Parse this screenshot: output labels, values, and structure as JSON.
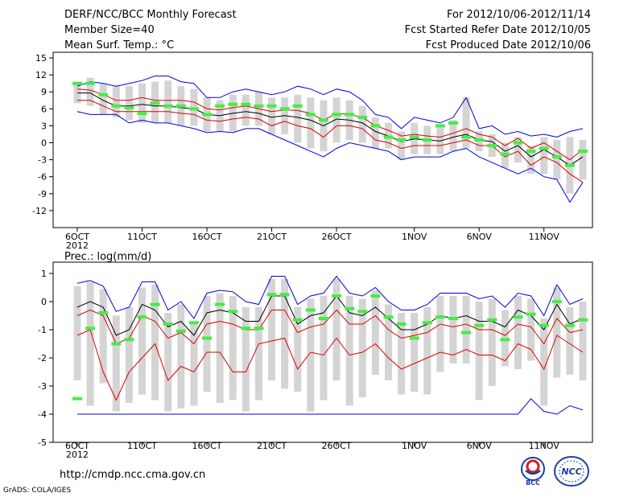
{
  "header": {
    "title": "DERF/NCC/BCC Monthly Forecast",
    "member_size": "Member Size=40",
    "variable": "Mean Surf. Temp.: °C",
    "forecast_period": "For 2012/10/06-2012/11/14",
    "started_refer": "Fcst Started Refer Date 2012/10/05",
    "produced": "Fcst Produced Date 2012/10/06"
  },
  "footer": {
    "url": "http://cmdp.ncc.cma.gov.cn",
    "credit": "GrADS: COLA/IGES",
    "logo_bcc": "BCC",
    "logo_ncc": "NCC"
  },
  "colors": {
    "envelope": "#0000dd",
    "spread": "#dd0000",
    "mean": "#000000",
    "box": "#d4d4d4",
    "median": "#44ee44"
  },
  "chart_data": [
    {
      "type": "line",
      "title": "Mean Surf. Temp.: °C",
      "xlabel": "",
      "ylabel": "",
      "n_days": 40,
      "xticks": [
        {
          "day": 0,
          "label": "6OCT"
        },
        {
          "day": 5,
          "label": "11OCT"
        },
        {
          "day": 10,
          "label": "16OCT"
        },
        {
          "day": 15,
          "label": "21OCT"
        },
        {
          "day": 20,
          "label": "26OCT"
        },
        {
          "day": 26,
          "label": "1NOV"
        },
        {
          "day": 31,
          "label": "6NOV"
        },
        {
          "day": 36,
          "label": "11NOV"
        }
      ],
      "year_label": "2012",
      "ylim": [
        -15,
        16
      ],
      "yticks": [
        15,
        12,
        9,
        6,
        3,
        0,
        -3,
        -6,
        -9,
        -12
      ],
      "series": [
        {
          "name": "max",
          "color": "#0000dd",
          "values": [
            10,
            10.8,
            10.5,
            10,
            10.5,
            11,
            11.8,
            11.8,
            10.8,
            10.5,
            8,
            8,
            9,
            9.5,
            9,
            8.5,
            9,
            10,
            9.5,
            8.5,
            9.5,
            9,
            7.5,
            5,
            4.5,
            2.5,
            4.5,
            4,
            3.5,
            4.5,
            8,
            2.5,
            3,
            1.5,
            2,
            1.2,
            1.5,
            1,
            2,
            2.5
          ]
        },
        {
          "name": "upper",
          "color": "#dd0000",
          "values": [
            9.5,
            9.3,
            8.5,
            7.5,
            7.5,
            8,
            7.5,
            7.5,
            7.5,
            7.2,
            6,
            5.8,
            6.2,
            6.5,
            6,
            5.5,
            5.8,
            5.7,
            5.2,
            4,
            5.2,
            5,
            4.5,
            3,
            2.2,
            1.2,
            1.5,
            1.2,
            1,
            1.7,
            2.5,
            1.5,
            1,
            -0.5,
            0.8,
            -1,
            0,
            -1.5,
            -3,
            -1.2
          ]
        },
        {
          "name": "mean",
          "color": "#000000",
          "values": [
            8.8,
            8.8,
            7.5,
            6.5,
            6.5,
            6.8,
            6.5,
            6.5,
            6.2,
            6,
            5,
            4.8,
            5.2,
            5.5,
            5.2,
            4.5,
            4.8,
            4.5,
            4,
            3,
            4.2,
            4,
            3.5,
            2,
            1.2,
            0.2,
            0.7,
            0.5,
            0.3,
            1,
            1.5,
            0.5,
            0.2,
            -1.5,
            -0.5,
            -2.5,
            -1.2,
            -2.5,
            -4,
            -2.5
          ]
        },
        {
          "name": "lower",
          "color": "#dd0000",
          "values": [
            7.5,
            7.5,
            6.5,
            5.5,
            5.5,
            5.5,
            5.5,
            5.5,
            5.2,
            5,
            4,
            3.8,
            4.2,
            4.5,
            4.2,
            3,
            3.8,
            3,
            2.5,
            1,
            3,
            3,
            2.5,
            0.5,
            0,
            -1,
            -0.5,
            -0.5,
            -0.5,
            0,
            0.5,
            -0.5,
            -0.5,
            -2.5,
            -1.5,
            -4,
            -2.5,
            -3.5,
            -5.5,
            -7
          ]
        },
        {
          "name": "min",
          "color": "#0000dd",
          "values": [
            5.5,
            5,
            5,
            5,
            3.5,
            4,
            3.5,
            3.5,
            3,
            2.5,
            1.8,
            2,
            1.8,
            2.5,
            2.5,
            1.5,
            0.5,
            -0.5,
            -1.5,
            -2.5,
            -1,
            0,
            -0.5,
            -1,
            -1.5,
            -3,
            -2.5,
            -2.5,
            -2.5,
            -1.5,
            -1,
            -2.5,
            -3.5,
            -4.5,
            -5.5,
            -4.5,
            -6,
            -6.5,
            -10.5,
            -7
          ]
        }
      ],
      "boxes": {
        "top": [
          10.5,
          11.5,
          10.5,
          10,
          10,
          10.5,
          10.8,
          11,
          10,
          9.5,
          8,
          7.5,
          8.5,
          8.5,
          9,
          8,
          8,
          8.5,
          8,
          7.5,
          8,
          7.5,
          6.5,
          4.5,
          3.5,
          2,
          3.5,
          3,
          3,
          4,
          8,
          2,
          1.5,
          0,
          1,
          -0.5,
          1,
          0.5,
          1,
          0.5
        ],
        "bottom": [
          7,
          6.5,
          5,
          4.5,
          4,
          3.5,
          3.5,
          3.5,
          3,
          3,
          2,
          2,
          2,
          3,
          3,
          1.5,
          1.5,
          0,
          -1,
          -1.5,
          0,
          0.5,
          0,
          -1,
          -1,
          -3,
          -2,
          -2,
          -2,
          -1.5,
          -1,
          -1.5,
          -2.5,
          -4.5,
          -3.5,
          -5.5,
          -5.5,
          -6.5,
          -9,
          -6.5
        ]
      },
      "median": [
        10.5,
        10.5,
        8.5,
        6.5,
        6.2,
        5.2,
        7,
        6.5,
        6.5,
        6,
        5,
        6.5,
        6.8,
        6.8,
        6.5,
        6.5,
        6,
        6.5,
        5,
        4,
        5,
        5,
        4.5,
        3,
        1,
        0.5,
        1,
        0.5,
        3,
        3.5,
        1,
        0.5,
        -0.5,
        -2,
        0,
        -1.5,
        -1,
        -2.5,
        -4,
        -1.5
      ]
    },
    {
      "type": "line",
      "title": "Prec.: log(mm/d)",
      "xlabel": "",
      "ylabel": "",
      "n_days": 40,
      "xticks": [
        {
          "day": 0,
          "label": "6OCT"
        },
        {
          "day": 5,
          "label": "11OCT"
        },
        {
          "day": 10,
          "label": "16OCT"
        },
        {
          "day": 15,
          "label": "21OCT"
        },
        {
          "day": 20,
          "label": "26OCT"
        },
        {
          "day": 26,
          "label": "1NOV"
        },
        {
          "day": 31,
          "label": "6NOV"
        },
        {
          "day": 36,
          "label": "11NOV"
        }
      ],
      "year_label": "2012",
      "ylim": [
        -5,
        1.4
      ],
      "yticks": [
        1,
        0,
        -1,
        -2,
        -3,
        -4,
        -5
      ],
      "series": [
        {
          "name": "max",
          "color": "#0000dd",
          "values": [
            0.65,
            0.75,
            0.55,
            -0.35,
            -0.2,
            0.7,
            0.7,
            -0.3,
            0,
            -0.6,
            0.3,
            0.4,
            0.35,
            0,
            -0.1,
            0.9,
            0.9,
            -0.1,
            0.2,
            0.3,
            0.9,
            0.3,
            0.2,
            0.5,
            0,
            -0.3,
            -0.3,
            -0.1,
            0.3,
            0.3,
            0.3,
            0.1,
            0.2,
            -0.2,
            0.3,
            0.2,
            -0.5,
            0.6,
            -0.1,
            0.1
          ]
        },
        {
          "name": "upper",
          "color": "#dd0000",
          "values": [
            -0.5,
            -0.3,
            -0.5,
            -1.5,
            -1.3,
            -0.5,
            -0.7,
            -1.3,
            -1.1,
            -1.5,
            -0.8,
            -0.7,
            -0.8,
            -1,
            -1,
            -0.3,
            -0.3,
            -1.1,
            -0.9,
            -0.8,
            -0.3,
            -0.8,
            -0.8,
            -0.5,
            -1,
            -1.3,
            -1.2,
            -1.1,
            -0.8,
            -0.9,
            -0.8,
            -1,
            -1,
            -1.2,
            -0.8,
            -0.9,
            -1.5,
            -0.6,
            -1.1,
            -1
          ]
        },
        {
          "name": "mean",
          "color": "#000000",
          "values": [
            -0.2,
            0,
            -0.2,
            -1.2,
            -1,
            -0.1,
            -0.3,
            -0.9,
            -0.7,
            -1.2,
            -0.4,
            -0.3,
            -0.4,
            -0.7,
            -0.7,
            0.2,
            0.2,
            -0.8,
            -0.5,
            -0.4,
            0.2,
            -0.4,
            -0.5,
            -0.2,
            -0.6,
            -1,
            -1,
            -0.8,
            -0.5,
            -0.6,
            -0.5,
            -0.7,
            -0.7,
            -0.9,
            -0.3,
            -0.5,
            -1,
            -0.1,
            -0.8,
            -0.6
          ]
        },
        {
          "name": "lower",
          "color": "#dd0000",
          "values": [
            -1.2,
            -1,
            -2.5,
            -3.5,
            -2.5,
            -2,
            -1.5,
            -2.8,
            -2.3,
            -2.5,
            -1.8,
            -1.8,
            -2.5,
            -2.5,
            -1.5,
            -1.4,
            -1.3,
            -2.4,
            -1.8,
            -1.9,
            -1.3,
            -1.9,
            -1.8,
            -1.5,
            -2,
            -2.4,
            -2.2,
            -2,
            -1.8,
            -1.9,
            -1.7,
            -1.9,
            -1.9,
            -2.1,
            -1.5,
            -1.7,
            -2.4,
            -1.2,
            -1.5,
            -1.8
          ]
        },
        {
          "name": "min",
          "color": "#0000dd",
          "values": [
            -4,
            -4,
            -4,
            -4,
            -4,
            -4,
            -4,
            -4,
            -4,
            -4,
            -4,
            -4,
            -4,
            -4,
            -4,
            -4,
            -4,
            -4,
            -4,
            -4,
            -4,
            -4,
            -4,
            -4,
            -4,
            -4,
            -4,
            -4,
            -4,
            -4,
            -4,
            -4,
            -4,
            -4,
            -4,
            -3.45,
            -3.9,
            -4,
            -3.7,
            -3.85
          ]
        }
      ],
      "boxes": {
        "top": [
          0.55,
          0.7,
          0.45,
          -0.5,
          -0.2,
          0.5,
          0.6,
          -0.4,
          -0.1,
          -0.7,
          0.2,
          0.3,
          0.2,
          -0.2,
          -0.2,
          0.8,
          0.8,
          -0.2,
          0.1,
          0.2,
          0.8,
          0.2,
          0.1,
          0.4,
          -0.1,
          -0.4,
          -0.4,
          -0.2,
          0.2,
          0.2,
          0.2,
          0,
          0.1,
          -0.3,
          0.2,
          0.1,
          -0.6,
          0.5,
          -0.2,
          0
        ],
        "bottom": [
          -2.8,
          -3.7,
          -2.9,
          -3.9,
          -3.6,
          -3.3,
          -3.5,
          -3.9,
          -3.8,
          -3.7,
          -3.2,
          -3.6,
          -3.5,
          -3.9,
          -3.5,
          -2.8,
          -3.1,
          -3.2,
          -3.9,
          -3.5,
          -2.8,
          -3.7,
          -3.4,
          -2.6,
          -2.8,
          -3.3,
          -3.2,
          -3.3,
          -2.5,
          -2.2,
          -2.2,
          -3.5,
          -3,
          -2.3,
          -2.4,
          -2.1,
          -3.7,
          -2.7,
          -2.6,
          -2.8
        ]
      },
      "median": [
        -3.45,
        -0.95,
        -0.4,
        -1.5,
        -1.35,
        -0.55,
        -0.1,
        -0.8,
        -1.05,
        -0.75,
        -1.3,
        -0.1,
        -0.35,
        -0.95,
        -0.95,
        0.25,
        0.25,
        -0.65,
        -0.3,
        -0.6,
        0.2,
        -0.25,
        -0.35,
        0.2,
        -0.55,
        -0.8,
        -1.3,
        -0.75,
        -0.55,
        -0.6,
        -1.1,
        -0.85,
        -0.65,
        -1.35,
        -0.55,
        -0.45,
        -0.85,
        0,
        -0.85,
        -0.65
      ]
    }
  ]
}
